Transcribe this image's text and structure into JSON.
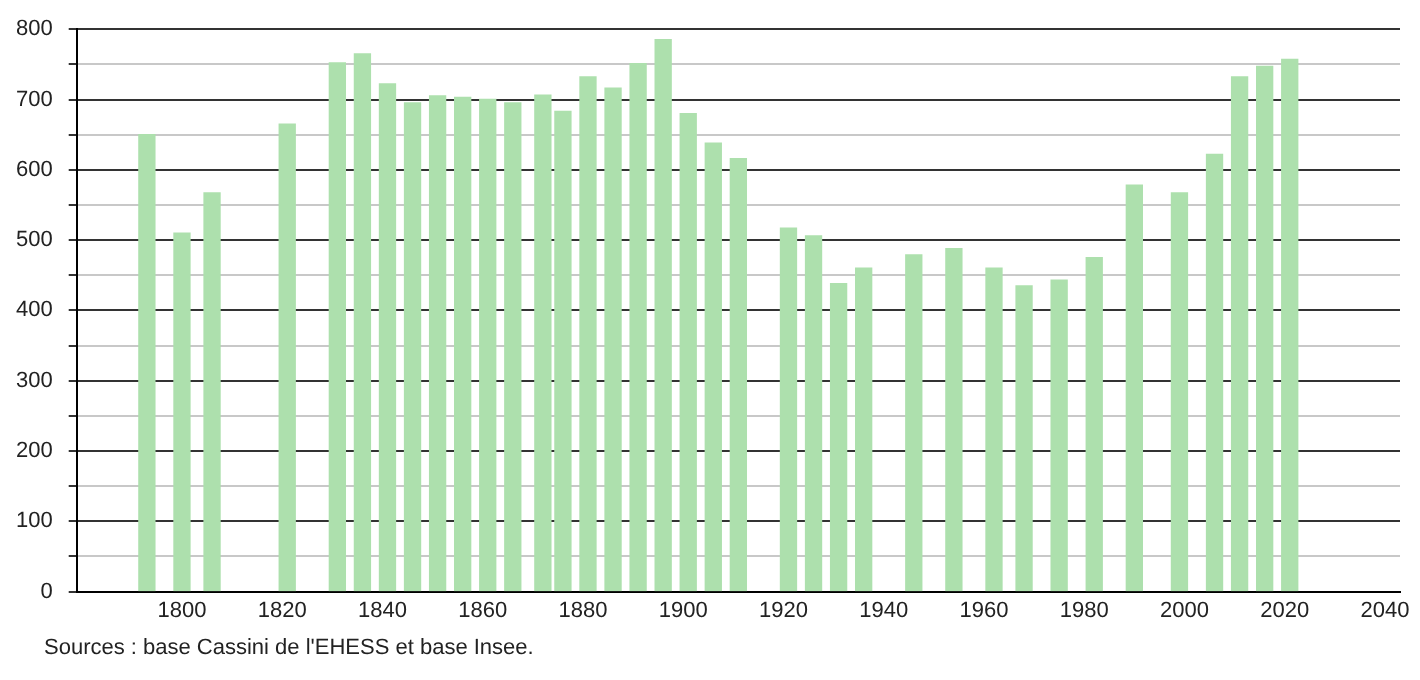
{
  "chart_data": {
    "type": "bar",
    "x": [
      1793,
      1800,
      1806,
      1821,
      1831,
      1836,
      1841,
      1846,
      1851,
      1856,
      1861,
      1866,
      1872,
      1876,
      1881,
      1886,
      1891,
      1896,
      1901,
      1906,
      1911,
      1921,
      1926,
      1931,
      1936,
      1946,
      1954,
      1962,
      1968,
      1975,
      1982,
      1990,
      1999,
      2006,
      2011,
      2016,
      2021
    ],
    "values": [
      650,
      510,
      567,
      665,
      752,
      765,
      722,
      695,
      705,
      703,
      700,
      695,
      706,
      683,
      732,
      716,
      751,
      785,
      680,
      638,
      616,
      517,
      506,
      438,
      460,
      479,
      488,
      460,
      435,
      443,
      475,
      578,
      567,
      622,
      732,
      747,
      757
    ],
    "color": "#ade0ad",
    "xlim": [
      1779,
      2043
    ],
    "xticks": [
      1800,
      1820,
      1840,
      1860,
      1880,
      1900,
      1920,
      1940,
      1960,
      1980,
      2000,
      2020,
      2040
    ],
    "ylim": [
      0,
      800
    ],
    "yticks": [
      0,
      {
        "value": 50,
        "label": null
      },
      100,
      {
        "value": 150,
        "label": null
      },
      200,
      {
        "value": 250,
        "label": null
      },
      300,
      {
        "value": 350,
        "label": null
      },
      400,
      {
        "value": 450,
        "label": null
      },
      500,
      {
        "value": 550,
        "label": null
      },
      600,
      {
        "value": 650,
        "label": null
      },
      700,
      {
        "value": 750,
        "label": null
      },
      800
    ],
    "grid": "y",
    "annotations": [
      "Sources : base Cassini de l'EHESS et base Insee."
    ]
  }
}
